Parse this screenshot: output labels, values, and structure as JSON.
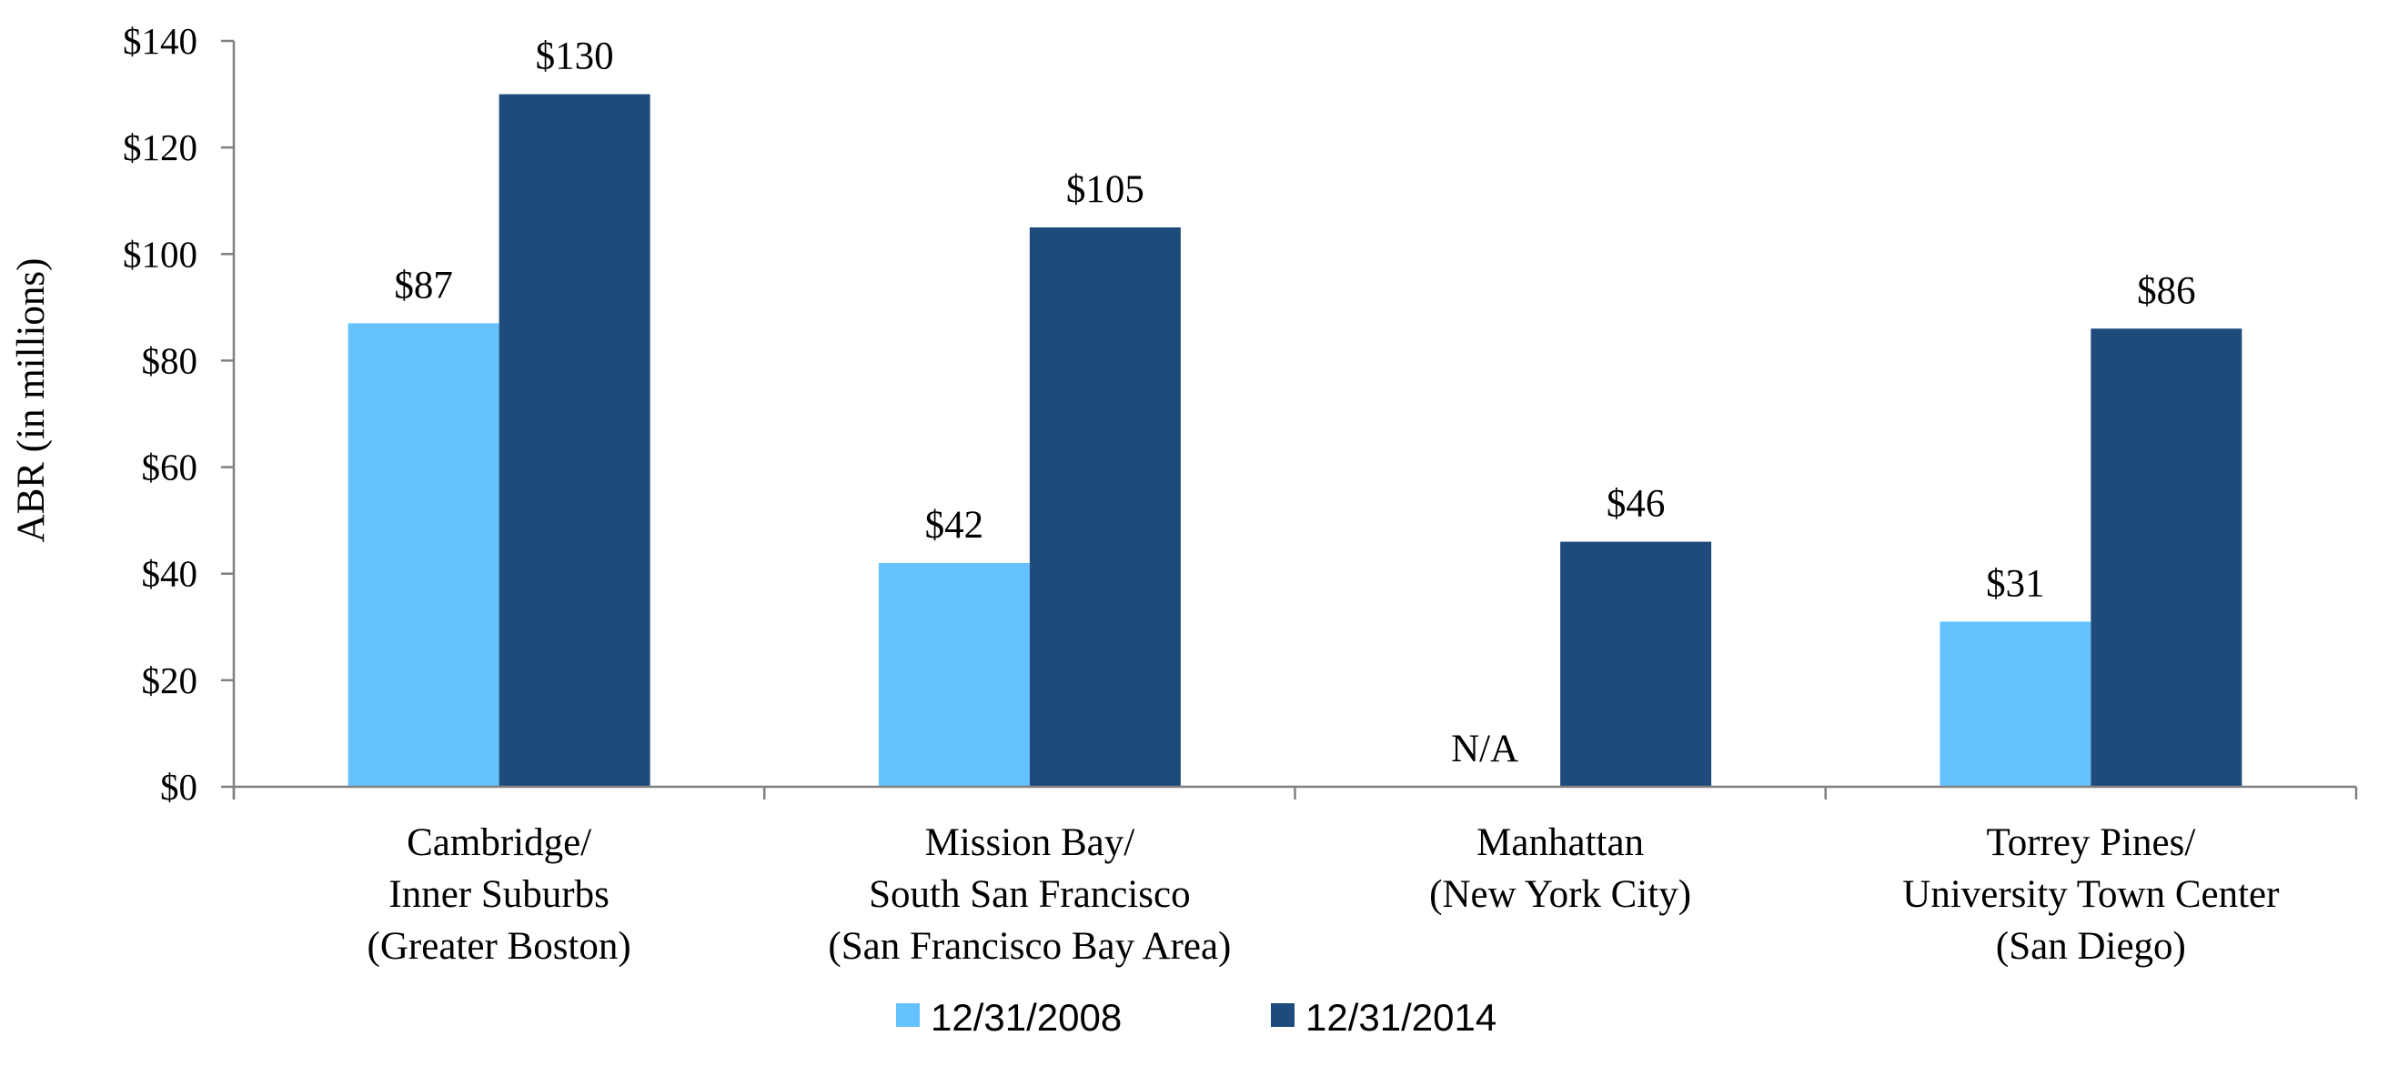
{
  "chart_data": {
    "type": "bar",
    "title": "",
    "xlabel": "",
    "ylabel": "ABR (in millions)",
    "ylim": [
      0,
      140
    ],
    "y_ticks": [
      0,
      20,
      40,
      60,
      80,
      100,
      120,
      140
    ],
    "y_tick_labels": [
      "$0",
      "$20",
      "$40",
      "$60",
      "$80",
      "$100",
      "$120",
      "$140"
    ],
    "categories": [
      [
        "Cambridge/",
        "Inner Suburbs",
        "(Greater Boston)"
      ],
      [
        "Mission Bay/",
        "South San Francisco",
        "(San Francisco Bay Area)"
      ],
      [
        "Manhattan",
        "(New York City)"
      ],
      [
        "Torrey Pines/",
        "University Town Center",
        "(San Diego)"
      ]
    ],
    "series": [
      {
        "name": "12/31/2008",
        "color": "#66c2ff",
        "values": [
          87,
          42,
          null,
          31
        ],
        "labels": [
          "$87",
          "$42",
          "N/A",
          "$31"
        ]
      },
      {
        "name": "12/31/2014",
        "color": "#1f4a7c",
        "values": [
          130,
          105,
          46,
          86
        ],
        "labels": [
          "$130",
          "$105",
          "$46",
          "$86"
        ]
      }
    ],
    "legend_position": "bottom-center",
    "grid": false
  }
}
